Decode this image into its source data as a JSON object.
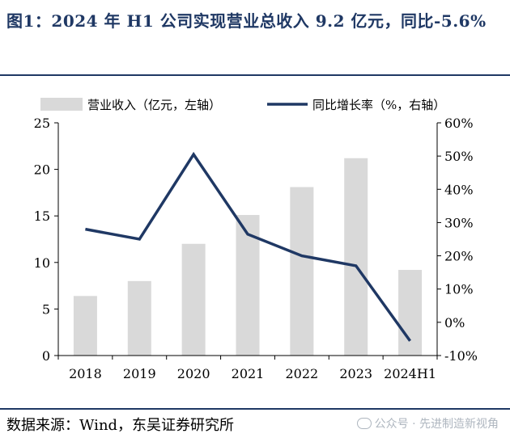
{
  "header": {
    "title": "图1：2024 年 H1 公司实现营业总收入 9.2 亿元，同比-5.6%"
  },
  "chart_data": {
    "type": "bar+line",
    "title": "",
    "categories": [
      "2018",
      "2019",
      "2020",
      "2021",
      "2022",
      "2023",
      "2024H1"
    ],
    "series": [
      {
        "name": "营业收入（亿元，左轴）",
        "type": "bar",
        "axis": "left",
        "values": [
          6.4,
          8.0,
          12.0,
          15.1,
          18.1,
          21.2,
          9.2
        ]
      },
      {
        "name": "同比增长率（%，右轴）",
        "type": "line",
        "axis": "right",
        "values": [
          28.0,
          25.0,
          50.5,
          26.5,
          20.0,
          17.0,
          -5.6
        ]
      }
    ],
    "y_left": {
      "lim": [
        0,
        25
      ],
      "ticks": [
        "0",
        "5",
        "10",
        "15",
        "20",
        "25"
      ],
      "tick_values": [
        0,
        5,
        10,
        15,
        20,
        25
      ]
    },
    "y_right": {
      "lim": [
        -10,
        60
      ],
      "ticks": [
        "-10%",
        "0%",
        "10%",
        "20%",
        "30%",
        "40%",
        "50%",
        "60%"
      ],
      "tick_values": [
        -10,
        0,
        10,
        20,
        30,
        40,
        50,
        60
      ]
    },
    "legend_position": "top",
    "grid": false,
    "colors": {
      "bar": "#d9d9d9",
      "line": "#1f3864"
    }
  },
  "footer": {
    "source": "数据来源：Wind，东吴证券研究所",
    "watermark": "公众号 · 先进制造新视角"
  }
}
